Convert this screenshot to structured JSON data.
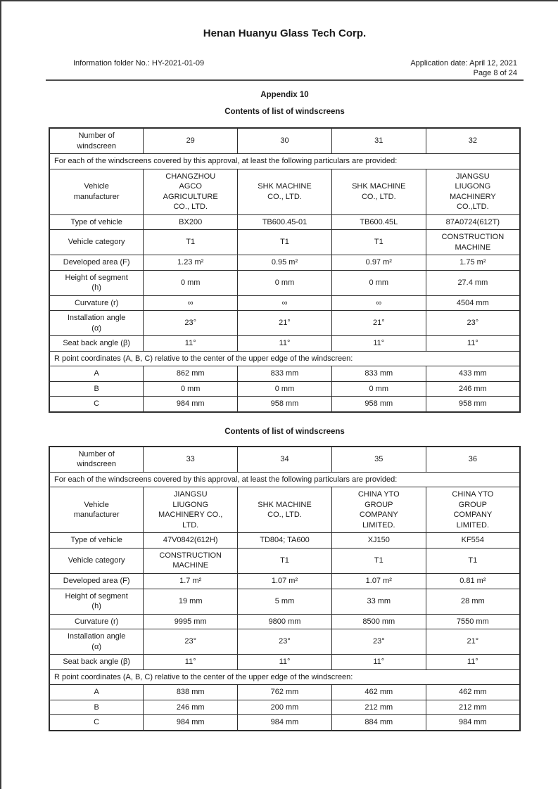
{
  "page": {
    "title": "Henan Huanyu Glass Tech Corp.",
    "info_folder": "Information folder No.: HY-2021-01-09",
    "application_date": "Application date: April 12, 2021",
    "page_number": "Page 8 of 24",
    "appendix": "Appendix 10"
  },
  "tables": [
    {
      "title": "Contents of list of windscreens",
      "rows": [
        {
          "label": "Number of\nwindscreen",
          "cells": [
            "29",
            "30",
            "31",
            "32"
          ]
        },
        {
          "span": "For each of the windscreens covered by this approval, at least the following particulars are provided:"
        },
        {
          "label": "Vehicle\nmanufacturer",
          "cells": [
            "CHANGZHOU\nAGCO\nAGRICULTURE\nCO., LTD.",
            "SHK MACHINE\nCO., LTD.",
            "SHK MACHINE\nCO., LTD.",
            "JIANGSU\nLIUGONG\nMACHINERY\nCO.,LTD."
          ]
        },
        {
          "label": "Type of vehicle",
          "cells": [
            "BX200",
            "TB600.45-01",
            "TB600.45L",
            "87A0724(612T)"
          ]
        },
        {
          "label": "Vehicle category",
          "cells": [
            "T1",
            "T1",
            "T1",
            "CONSTRUCTION\nMACHINE"
          ]
        },
        {
          "label": "Developed area (F)",
          "cells": [
            "1.23 m²",
            "0.95 m²",
            "0.97 m²",
            "1.75 m²"
          ]
        },
        {
          "label": "Height of segment\n(h)",
          "cells": [
            "0 mm",
            "0 mm",
            "0 mm",
            "27.4 mm"
          ]
        },
        {
          "label": "Curvature (r)",
          "cells": [
            "∞",
            "∞",
            "∞",
            "4504 mm"
          ]
        },
        {
          "label": "Installation angle\n(α)",
          "cells": [
            "23°",
            "21°",
            "21°",
            "23°"
          ]
        },
        {
          "label": "Seat back angle (β)",
          "cells": [
            "11°",
            "11°",
            "11°",
            "11°"
          ]
        },
        {
          "span": "R point coordinates (A, B, C) relative to the center of the upper edge of the windscreen:"
        },
        {
          "label": "A",
          "cells": [
            "862 mm",
            "833 mm",
            "833 mm",
            "433 mm"
          ]
        },
        {
          "label": "B",
          "cells": [
            "0 mm",
            "0 mm",
            "0 mm",
            "246 mm"
          ]
        },
        {
          "label": "C",
          "cells": [
            "984 mm",
            "958 mm",
            "958 mm",
            "958 mm"
          ]
        }
      ]
    },
    {
      "title": "Contents of list of windscreens",
      "rows": [
        {
          "label": "Number of\nwindscreen",
          "cells": [
            "33",
            "34",
            "35",
            "36"
          ]
        },
        {
          "span": "For each of the windscreens covered by this approval, at least the following particulars are provided:"
        },
        {
          "label": "Vehicle\nmanufacturer",
          "cells": [
            "JIANGSU\nLIUGONG\nMACHINERY CO.,\nLTD.",
            "SHK MACHINE\nCO., LTD.",
            "CHINA YTO\nGROUP\nCOMPANY\nLIMITED.",
            "CHINA YTO\nGROUP\nCOMPANY\nLIMITED."
          ]
        },
        {
          "label": "Type of vehicle",
          "cells": [
            "47V0842(612H)",
            "TD804; TA600",
            "XJ150",
            "KF554"
          ]
        },
        {
          "label": "Vehicle category",
          "cells": [
            "CONSTRUCTION\nMACHINE",
            "T1",
            "T1",
            "T1"
          ]
        },
        {
          "label": "Developed area (F)",
          "cells": [
            "1.7 m²",
            "1.07 m²",
            "1.07 m²",
            "0.81 m²"
          ]
        },
        {
          "label": "Height of segment\n(h)",
          "cells": [
            "19 mm",
            "5 mm",
            "33 mm",
            "28 mm"
          ]
        },
        {
          "label": "Curvature (r)",
          "cells": [
            "9995 mm",
            "9800 mm",
            "8500 mm",
            "7550 mm"
          ]
        },
        {
          "label": "Installation angle\n(α)",
          "cells": [
            "23°",
            "23°",
            "23°",
            "21°"
          ]
        },
        {
          "label": "Seat back angle (β)",
          "cells": [
            "11°",
            "11°",
            "11°",
            "11°"
          ]
        },
        {
          "span": "R point coordinates (A, B, C) relative to the center of the upper edge of the windscreen:"
        },
        {
          "label": "A",
          "cells": [
            "838 mm",
            "762 mm",
            "462 mm",
            "462 mm"
          ]
        },
        {
          "label": "B",
          "cells": [
            "246 mm",
            "200 mm",
            "212 mm",
            "212 mm"
          ]
        },
        {
          "label": "C",
          "cells": [
            "984 mm",
            "984 mm",
            "884 mm",
            "984 mm"
          ]
        }
      ]
    }
  ]
}
